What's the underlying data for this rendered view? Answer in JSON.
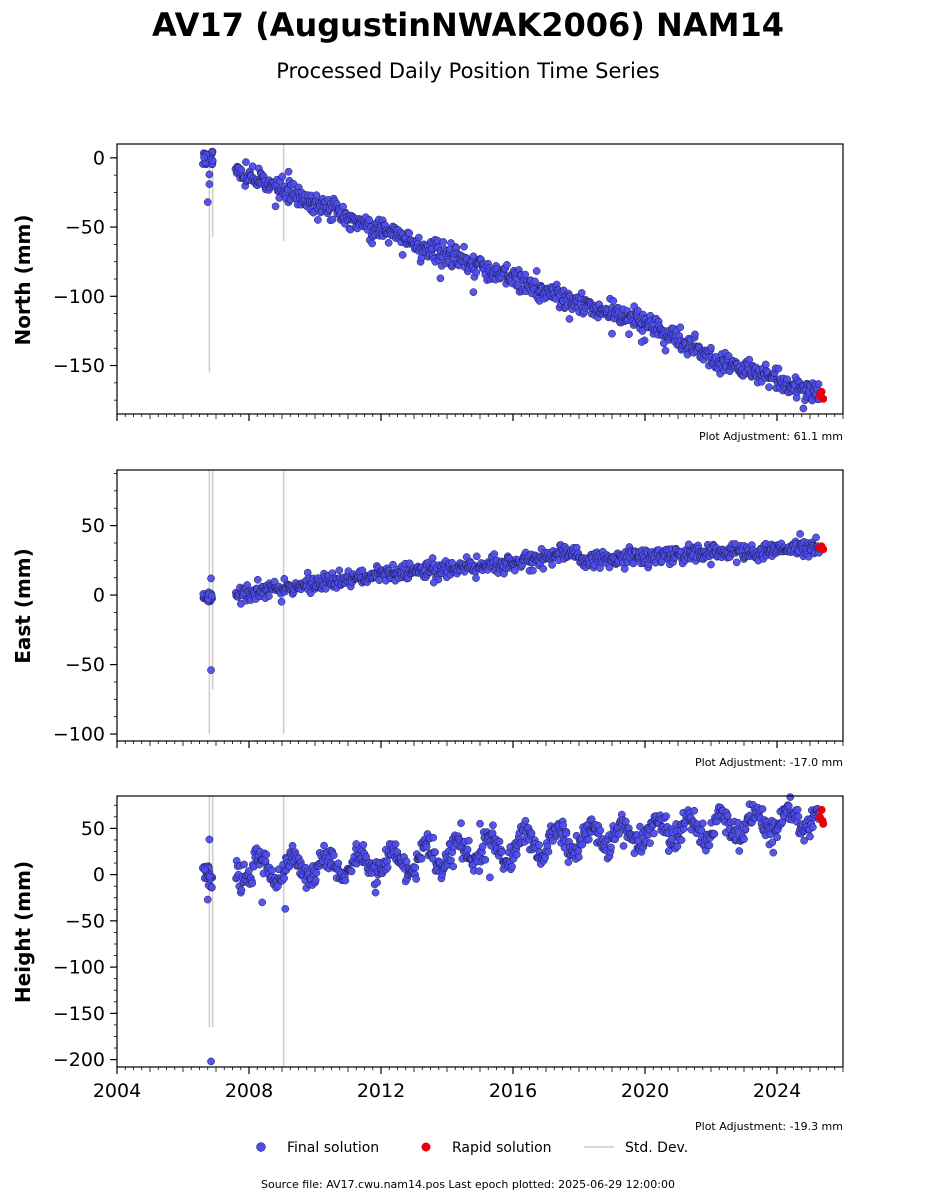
{
  "title": "AV17 (AugustinNWAK2006) NAM14",
  "subtitle": "Processed Daily Position Time Series",
  "colors": {
    "final": "#4d4dee",
    "final_edge": "#1a1a40",
    "rapid": "#e8000b",
    "stddev": "#cccccc",
    "axis": "#000000"
  },
  "legend": {
    "final": "Final solution",
    "rapid": "Rapid solution",
    "stddev": "Std. Dev."
  },
  "footer": "Source file: AV17.cwu.nam14.pos  Last epoch plotted: 2025-06-29 12:00:00",
  "chart_data": [
    {
      "type": "scatter",
      "ylabel": "North (mm)",
      "xlim": [
        2004.0,
        2026.0
      ],
      "ylim": [
        -185,
        10
      ],
      "yticks": [
        0,
        -50,
        -100,
        -150
      ],
      "ytick_labels": [
        "0",
        "−50",
        "−100",
        "−150"
      ],
      "adjustment": "Plot Adjustment: 61.1 mm",
      "gaps": [
        [
          2006.85,
          2007.6
        ]
      ],
      "early_cluster": {
        "x": [
          2006.6,
          2006.9
        ],
        "y": [
          -5,
          5
        ],
        "outliers": [
          [
            2006.75,
            -32
          ],
          [
            2006.8,
            -19
          ],
          [
            2006.8,
            -12
          ]
        ]
      },
      "stddev_bars": [
        [
          2006.8,
          -155,
          0
        ],
        [
          2006.9,
          -57,
          2
        ],
        [
          2009.05,
          -60,
          10
        ]
      ],
      "trend": [
        [
          2007.6,
          -10
        ],
        [
          2012.0,
          -52
        ],
        [
          2016.0,
          -88
        ],
        [
          2018.2,
          -107
        ],
        [
          2020.0,
          -118
        ],
        [
          2022.0,
          -145
        ],
        [
          2025.3,
          -170
        ]
      ],
      "scatter_sd": 4,
      "outliers": [
        [
          2009.2,
          -10
        ],
        [
          2013.8,
          -87
        ],
        [
          2014.8,
          -97
        ],
        [
          2019.0,
          -127
        ],
        [
          2019.9,
          -133
        ],
        [
          2024.8,
          -181
        ]
      ],
      "rapid": [
        [
          2025.3,
          -172
        ],
        [
          2025.35,
          -169
        ],
        [
          2025.4,
          -174
        ]
      ]
    },
    {
      "type": "scatter",
      "ylabel": "East (mm)",
      "xlim": [
        2004.0,
        2026.0
      ],
      "ylim": [
        -105,
        90
      ],
      "yticks": [
        50,
        0,
        -50,
        -100
      ],
      "ytick_labels": [
        "50",
        "0",
        "−50",
        "−100"
      ],
      "adjustment": "Plot Adjustment: -17.0 mm",
      "gaps": [
        [
          2006.85,
          2007.6
        ]
      ],
      "early_cluster": {
        "x": [
          2006.6,
          2006.9
        ],
        "y": [
          -5,
          3
        ],
        "outliers": [
          [
            2006.85,
            12
          ],
          [
            2006.85,
            -54
          ]
        ]
      },
      "stddev_bars": [
        [
          2006.8,
          -100,
          90
        ],
        [
          2006.9,
          -68,
          90
        ],
        [
          2009.05,
          -100,
          90
        ]
      ],
      "trend": [
        [
          2007.6,
          0
        ],
        [
          2010.0,
          8
        ],
        [
          2012.0,
          15
        ],
        [
          2014.0,
          19
        ],
        [
          2016.0,
          23
        ],
        [
          2017.8,
          32
        ],
        [
          2018.2,
          25
        ],
        [
          2020.0,
          28
        ],
        [
          2022.0,
          30
        ],
        [
          2025.3,
          34
        ]
      ],
      "scatter_sd": 3,
      "outliers": [
        [
          2013.6,
          9
        ],
        [
          2024.7,
          44
        ]
      ],
      "rapid": [
        [
          2025.3,
          34
        ],
        [
          2025.35,
          35
        ],
        [
          2025.4,
          33
        ]
      ]
    },
    {
      "type": "scatter",
      "ylabel": "Height (mm)",
      "xlim": [
        2004.0,
        2026.0
      ],
      "ylim": [
        -208,
        85
      ],
      "yticks": [
        50,
        0,
        -50,
        -100,
        -150,
        -200
      ],
      "ytick_labels": [
        "50",
        "0",
        "−50",
        "−100",
        "−150",
        "−200"
      ],
      "xticks": [
        2004,
        2008,
        2012,
        2016,
        2020,
        2024
      ],
      "xtick_labels": [
        "2004",
        "2008",
        "2012",
        "2016",
        "2020",
        "2024"
      ],
      "adjustment": "Plot Adjustment: -19.3 mm",
      "gaps": [
        [
          2006.85,
          2007.6
        ]
      ],
      "early_cluster": {
        "x": [
          2006.6,
          2006.9
        ],
        "y": [
          -15,
          10
        ],
        "outliers": [
          [
            2006.8,
            38
          ],
          [
            2006.85,
            -202
          ],
          [
            2006.75,
            -27
          ]
        ]
      },
      "stddev_bars": [
        [
          2006.8,
          -165,
          85
        ],
        [
          2006.9,
          -165,
          85
        ],
        [
          2009.05,
          -208,
          85
        ]
      ],
      "trend": [
        [
          2007.6,
          5
        ],
        [
          2010.0,
          8
        ],
        [
          2012.0,
          12
        ],
        [
          2014.0,
          22
        ],
        [
          2016.0,
          30
        ],
        [
          2018.0,
          38
        ],
        [
          2020.0,
          45
        ],
        [
          2022.0,
          52
        ],
        [
          2025.3,
          60
        ]
      ],
      "seasonal_amp": 13,
      "scatter_sd": 7,
      "outliers": [
        [
          2008.4,
          -30
        ],
        [
          2009.1,
          -37
        ],
        [
          2015.3,
          -3
        ],
        [
          2015.0,
          55
        ]
      ],
      "rapid": [
        [
          2025.3,
          62
        ],
        [
          2025.35,
          70
        ],
        [
          2025.4,
          55
        ],
        [
          2025.38,
          58
        ]
      ]
    }
  ]
}
